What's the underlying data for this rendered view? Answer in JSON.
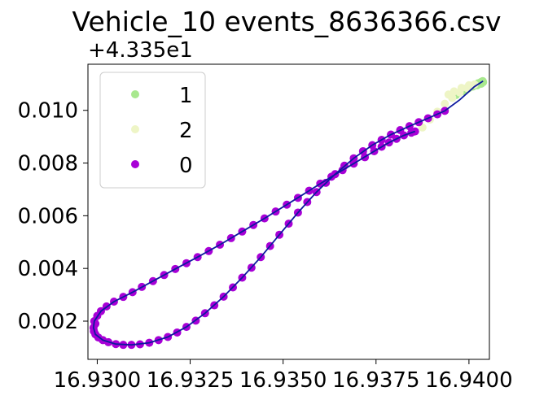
{
  "chart_data": {
    "type": "scatter",
    "title": "Vehicle_10 events_8636366.csv",
    "xlabel": "",
    "ylabel": "",
    "y_offset_text": "+4.335e1",
    "xlim": [
      16.92975,
      16.94055
    ],
    "ylim": [
      0.00055,
      0.01175
    ],
    "x_ticks": [
      16.93,
      16.9325,
      16.935,
      16.9375,
      16.94
    ],
    "x_tick_labels": [
      "16.9300",
      "16.9325",
      "16.9350",
      "16.9375",
      "16.9400"
    ],
    "y_ticks": [
      0.002,
      0.004,
      0.006,
      0.008,
      0.01
    ],
    "y_tick_labels": [
      "0.002",
      "0.004",
      "0.006",
      "0.008",
      "0.010"
    ],
    "grid": false,
    "legend_position": "top-left",
    "legend": [
      {
        "label": "1",
        "color": "#a8e88e"
      },
      {
        "label": "2",
        "color": "#eef5c6"
      },
      {
        "label": "0",
        "color": "#a800d6"
      }
    ],
    "line_color": "#0d1a9e",
    "series": [
      {
        "name": "1",
        "color": "#a8e88e",
        "x": [
          16.93955,
          16.93965,
          16.93975,
          16.93985,
          16.93995,
          16.94005,
          16.94015,
          16.94025,
          16.94032,
          16.94037,
          16.94038,
          16.94033,
          16.94022,
          16.9401,
          16.93998,
          16.93985
        ],
        "y": [
          0.01048,
          0.01058,
          0.01068,
          0.01077,
          0.01085,
          0.01092,
          0.01098,
          0.01103,
          0.01107,
          0.01111,
          0.01107,
          0.01101,
          0.01095,
          0.0109,
          0.01083,
          0.01073
        ]
      },
      {
        "name": "2",
        "color": "#eef5c6",
        "x": [
          16.93875,
          16.93895,
          16.93915,
          16.93935,
          16.93955,
          16.93975,
          16.93995,
          16.94015,
          16.93945,
          16.9396,
          16.9398,
          16.94
        ],
        "y": [
          0.00935,
          0.00965,
          0.00995,
          0.01025,
          0.01048,
          0.01068,
          0.01085,
          0.01098,
          0.0106,
          0.01072,
          0.01085,
          0.01095
        ]
      },
      {
        "name": "0",
        "color": "#a800d6",
        "x": [
          16.92995,
          16.9299,
          16.92991,
          16.92995,
          16.93003,
          16.93015,
          16.9303,
          16.9305,
          16.9307,
          16.93092,
          16.93115,
          16.9314,
          16.93165,
          16.9319,
          16.93215,
          16.9324,
          16.93265,
          16.9329,
          16.93315,
          16.9334,
          16.93365,
          16.9339,
          16.93415,
          16.9344,
          16.93465,
          16.9349,
          16.93515,
          16.9354,
          16.93565,
          16.9359,
          16.93615,
          16.9364,
          16.93665,
          16.9369,
          16.93715,
          16.9374,
          16.93765,
          16.9379,
          16.93815,
          16.9384,
          16.93865,
          16.9389,
          16.93915,
          16.93935,
          16.92992,
          16.93,
          16.9301,
          16.93025,
          16.93045,
          16.9307,
          16.93095,
          16.9312,
          16.9315,
          16.9318,
          16.9321,
          16.9324,
          16.9327,
          16.933,
          16.9333,
          16.9336,
          16.9339,
          16.9342,
          16.9345,
          16.9348,
          16.9351,
          16.9354,
          16.9357,
          16.936,
          16.9363,
          16.9366,
          16.9369,
          16.9372,
          16.93745,
          16.93765,
          16.93785,
          16.93805,
          16.93825,
          16.93845,
          16.93855
        ],
        "y": [
          0.0019,
          0.00175,
          0.00162,
          0.0015,
          0.00138,
          0.00128,
          0.0012,
          0.00113,
          0.0011,
          0.0011,
          0.00112,
          0.00118,
          0.00128,
          0.0014,
          0.00157,
          0.00178,
          0.00202,
          0.0023,
          0.0026,
          0.00293,
          0.00328,
          0.00365,
          0.00403,
          0.00443,
          0.00485,
          0.00528,
          0.0057,
          0.00612,
          0.00652,
          0.0069,
          0.00725,
          0.00758,
          0.0079,
          0.00818,
          0.00845,
          0.00868,
          0.00888,
          0.00908,
          0.00925,
          0.0094,
          0.00955,
          0.0097,
          0.00985,
          0.00998,
          0.002,
          0.0022,
          0.00238,
          0.00256,
          0.00274,
          0.00292,
          0.0031,
          0.0033,
          0.00352,
          0.00375,
          0.00398,
          0.0042,
          0.00443,
          0.00466,
          0.0049,
          0.00515,
          0.0054,
          0.00565,
          0.0059,
          0.00616,
          0.00642,
          0.00668,
          0.00695,
          0.00722,
          0.00748,
          0.00773,
          0.00798,
          0.00822,
          0.00845,
          0.00862,
          0.00878,
          0.00892,
          0.00905,
          0.00915,
          0.0092
        ]
      }
    ],
    "line_path": {
      "x": [
        16.93855,
        16.93825,
        16.93785,
        16.93745,
        16.9369,
        16.9363,
        16.9357,
        16.9351,
        16.9345,
        16.9339,
        16.9333,
        16.9327,
        16.9321,
        16.9315,
        16.93095,
        16.93045,
        16.9301,
        16.92992,
        16.9299,
        16.92995,
        16.93015,
        16.9305,
        16.93092,
        16.9314,
        16.9319,
        16.9324,
        16.9329,
        16.9334,
        16.9339,
        16.9344,
        16.9349,
        16.9354,
        16.9359,
        16.9364,
        16.9369,
        16.9374,
        16.9379,
        16.9384,
        16.9389,
        16.93935,
        16.93975,
        16.94015,
        16.94038
      ],
      "y": [
        0.0092,
        0.00905,
        0.00878,
        0.00845,
        0.00798,
        0.00748,
        0.00695,
        0.00642,
        0.0059,
        0.0054,
        0.0049,
        0.00443,
        0.00398,
        0.00352,
        0.0031,
        0.00274,
        0.00238,
        0.002,
        0.00175,
        0.0015,
        0.00128,
        0.00113,
        0.0011,
        0.00118,
        0.0014,
        0.00178,
        0.0023,
        0.00293,
        0.00365,
        0.00443,
        0.00528,
        0.00612,
        0.0069,
        0.00758,
        0.00818,
        0.00868,
        0.00908,
        0.0094,
        0.0097,
        0.00998,
        0.0104,
        0.0109,
        0.01111
      ]
    }
  }
}
